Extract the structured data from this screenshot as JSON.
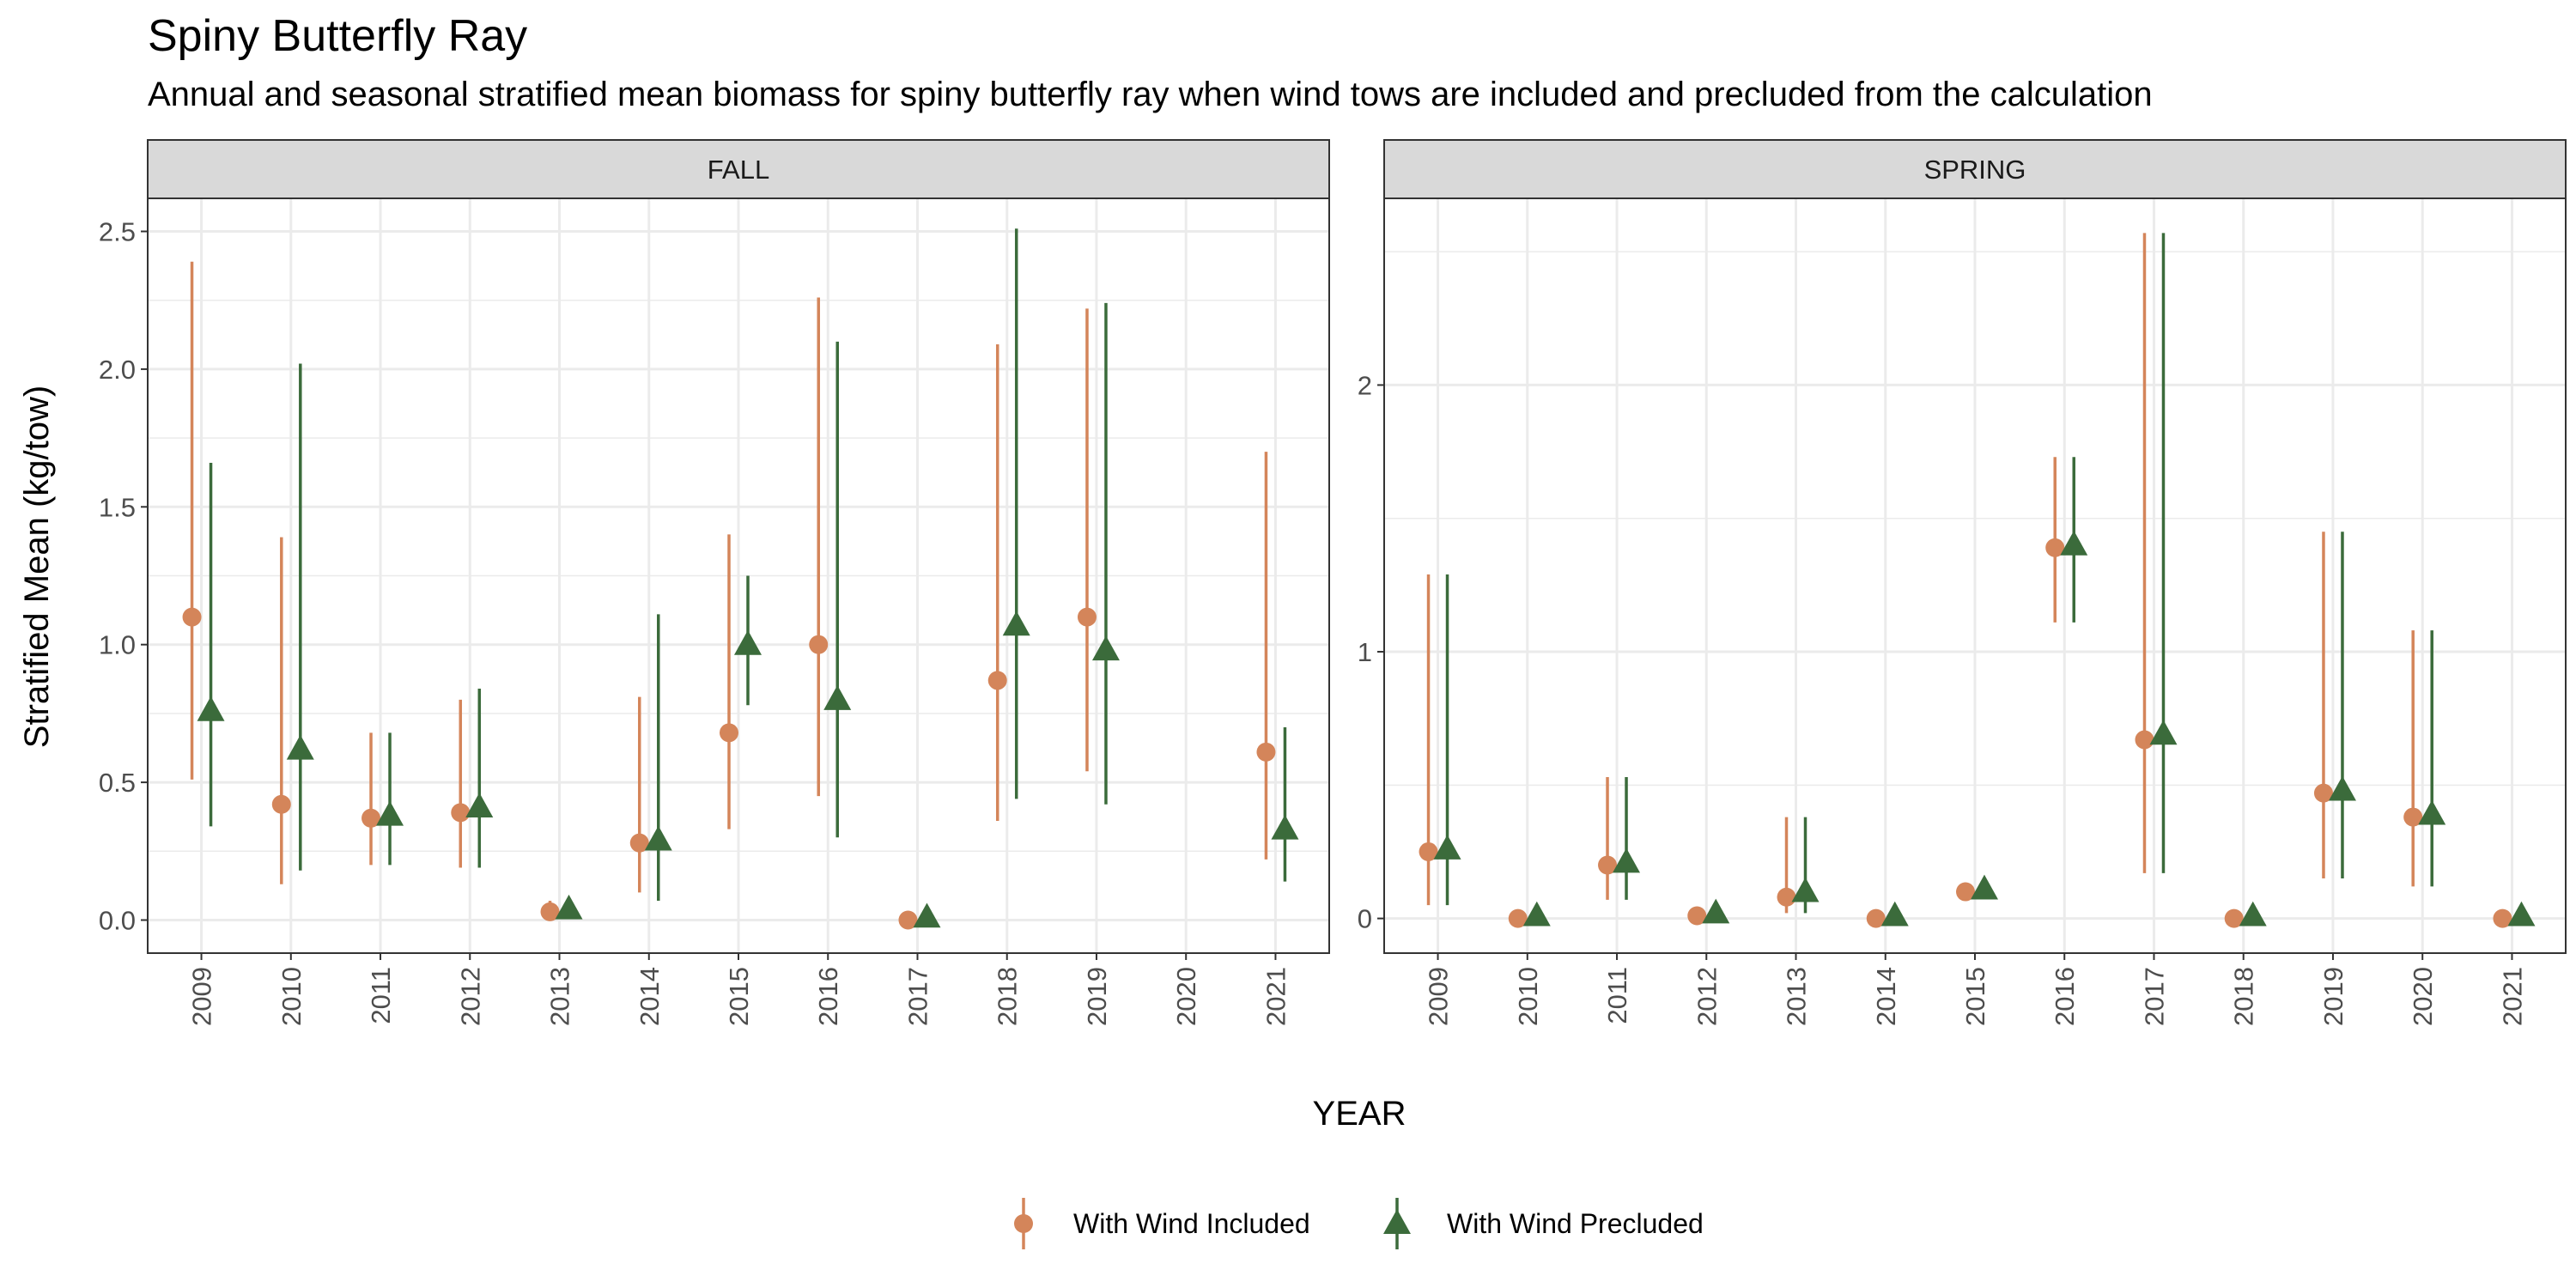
{
  "title": "Spiny Butterfly Ray",
  "subtitle": "Annual and seasonal stratified mean biomass for spiny butterfly ray when wind tows are included and precluded from the calculation",
  "colors": {
    "included": "#d4855a",
    "precluded": "#3b6b3b",
    "strip_bg": "#d9d9d9",
    "grid": "#ebebeb",
    "panel_border": "#333333"
  },
  "chart_data": {
    "type": "scatter",
    "title": "Spiny Butterfly Ray",
    "subtitle": "Annual and seasonal stratified mean biomass for spiny butterfly ray when wind tows are included and precluded from the calculation",
    "xlabel": "YEAR",
    "ylabel": "Stratified Mean (kg/tow)",
    "legend_position": "bottom",
    "legend": [
      {
        "key": "included",
        "label": "With Wind Included",
        "marker": "circle"
      },
      {
        "key": "precluded",
        "label": "With Wind Precluded",
        "marker": "triangle"
      }
    ],
    "categories": [
      "2009",
      "2010",
      "2011",
      "2012",
      "2013",
      "2014",
      "2015",
      "2016",
      "2017",
      "2018",
      "2019",
      "2020",
      "2021"
    ],
    "panels": [
      {
        "name": "FALL",
        "ylim": [
          -0.12,
          2.62
        ],
        "yticks": [
          0.0,
          0.5,
          1.0,
          1.5,
          2.0,
          2.5
        ],
        "ytick_labels": [
          "0.0",
          "0.5",
          "1.0",
          "1.5",
          "2.0",
          "2.5"
        ],
        "series": [
          {
            "key": "included",
            "name": "With Wind Included",
            "values": [
              {
                "x": "2009",
                "y": 1.1,
                "low": 0.51,
                "high": 2.39
              },
              {
                "x": "2010",
                "y": 0.42,
                "low": 0.13,
                "high": 1.39
              },
              {
                "x": "2011",
                "y": 0.37,
                "low": 0.2,
                "high": 0.68
              },
              {
                "x": "2012",
                "y": 0.39,
                "low": 0.19,
                "high": 0.8
              },
              {
                "x": "2013",
                "y": 0.03,
                "low": 0.0,
                "high": 0.07
              },
              {
                "x": "2014",
                "y": 0.28,
                "low": 0.1,
                "high": 0.81
              },
              {
                "x": "2015",
                "y": 0.68,
                "low": 0.33,
                "high": 1.4
              },
              {
                "x": "2016",
                "y": 1.0,
                "low": 0.45,
                "high": 2.26
              },
              {
                "x": "2017",
                "y": 0.0,
                "low": 0.0,
                "high": 0.0
              },
              {
                "x": "2018",
                "y": 0.87,
                "low": 0.36,
                "high": 2.09
              },
              {
                "x": "2019",
                "y": 1.1,
                "low": 0.54,
                "high": 2.22
              },
              {
                "x": "2021",
                "y": 0.61,
                "low": 0.22,
                "high": 1.7
              }
            ]
          },
          {
            "key": "precluded",
            "name": "With Wind Precluded",
            "values": [
              {
                "x": "2009",
                "y": 0.76,
                "low": 0.34,
                "high": 1.66
              },
              {
                "x": "2010",
                "y": 0.62,
                "low": 0.18,
                "high": 2.02
              },
              {
                "x": "2011",
                "y": 0.38,
                "low": 0.2,
                "high": 0.68
              },
              {
                "x": "2012",
                "y": 0.41,
                "low": 0.19,
                "high": 0.84
              },
              {
                "x": "2013",
                "y": 0.04,
                "low": 0.01,
                "high": 0.07
              },
              {
                "x": "2014",
                "y": 0.29,
                "low": 0.07,
                "high": 1.11
              },
              {
                "x": "2015",
                "y": 1.0,
                "low": 0.78,
                "high": 1.25
              },
              {
                "x": "2016",
                "y": 0.8,
                "low": 0.3,
                "high": 2.1
              },
              {
                "x": "2017",
                "y": 0.01,
                "low": 0.0,
                "high": 0.02
              },
              {
                "x": "2018",
                "y": 1.07,
                "low": 0.44,
                "high": 2.51
              },
              {
                "x": "2019",
                "y": 0.98,
                "low": 0.42,
                "high": 2.24
              },
              {
                "x": "2021",
                "y": 0.33,
                "low": 0.14,
                "high": 0.7
              }
            ]
          }
        ]
      },
      {
        "name": "SPRING",
        "ylim": [
          -0.13,
          2.7
        ],
        "yticks": [
          0,
          1,
          2
        ],
        "ytick_labels": [
          "0",
          "1",
          "2"
        ],
        "series": [
          {
            "key": "included",
            "name": "With Wind Included",
            "values": [
              {
                "x": "2009",
                "y": 0.25,
                "low": 0.05,
                "high": 1.29
              },
              {
                "x": "2010",
                "y": 0.0,
                "low": 0.0,
                "high": 0.0
              },
              {
                "x": "2011",
                "y": 0.2,
                "low": 0.07,
                "high": 0.53
              },
              {
                "x": "2012",
                "y": 0.01,
                "low": 0.0,
                "high": 0.02
              },
              {
                "x": "2013",
                "y": 0.08,
                "low": 0.02,
                "high": 0.38
              },
              {
                "x": "2014",
                "y": 0.0,
                "low": 0.0,
                "high": 0.0
              },
              {
                "x": "2015",
                "y": 0.1,
                "low": 0.08,
                "high": 0.12
              },
              {
                "x": "2016",
                "y": 1.39,
                "low": 1.11,
                "high": 1.73
              },
              {
                "x": "2017",
                "y": 0.67,
                "low": 0.17,
                "high": 2.57
              },
              {
                "x": "2018",
                "y": 0.0,
                "low": 0.0,
                "high": 0.0
              },
              {
                "x": "2019",
                "y": 0.47,
                "low": 0.15,
                "high": 1.45
              },
              {
                "x": "2020",
                "y": 0.38,
                "low": 0.12,
                "high": 1.08
              },
              {
                "x": "2021",
                "y": 0.0,
                "low": 0.0,
                "high": 0.0
              }
            ]
          },
          {
            "key": "precluded",
            "name": "With Wind Precluded",
            "values": [
              {
                "x": "2009",
                "y": 0.26,
                "low": 0.05,
                "high": 1.29
              },
              {
                "x": "2010",
                "y": 0.01,
                "low": 0.0,
                "high": 0.02
              },
              {
                "x": "2011",
                "y": 0.21,
                "low": 0.07,
                "high": 0.53
              },
              {
                "x": "2012",
                "y": 0.02,
                "low": 0.0,
                "high": 0.03
              },
              {
                "x": "2013",
                "y": 0.1,
                "low": 0.02,
                "high": 0.38
              },
              {
                "x": "2014",
                "y": 0.01,
                "low": 0.0,
                "high": 0.02
              },
              {
                "x": "2015",
                "y": 0.11,
                "low": 0.09,
                "high": 0.13
              },
              {
                "x": "2016",
                "y": 1.4,
                "low": 1.11,
                "high": 1.73
              },
              {
                "x": "2017",
                "y": 0.69,
                "low": 0.17,
                "high": 2.57
              },
              {
                "x": "2018",
                "y": 0.01,
                "low": 0.0,
                "high": 0.02
              },
              {
                "x": "2019",
                "y": 0.48,
                "low": 0.15,
                "high": 1.45
              },
              {
                "x": "2020",
                "y": 0.39,
                "low": 0.12,
                "high": 1.08
              },
              {
                "x": "2021",
                "y": 0.01,
                "low": 0.0,
                "high": 0.02
              }
            ]
          }
        ]
      }
    ]
  }
}
